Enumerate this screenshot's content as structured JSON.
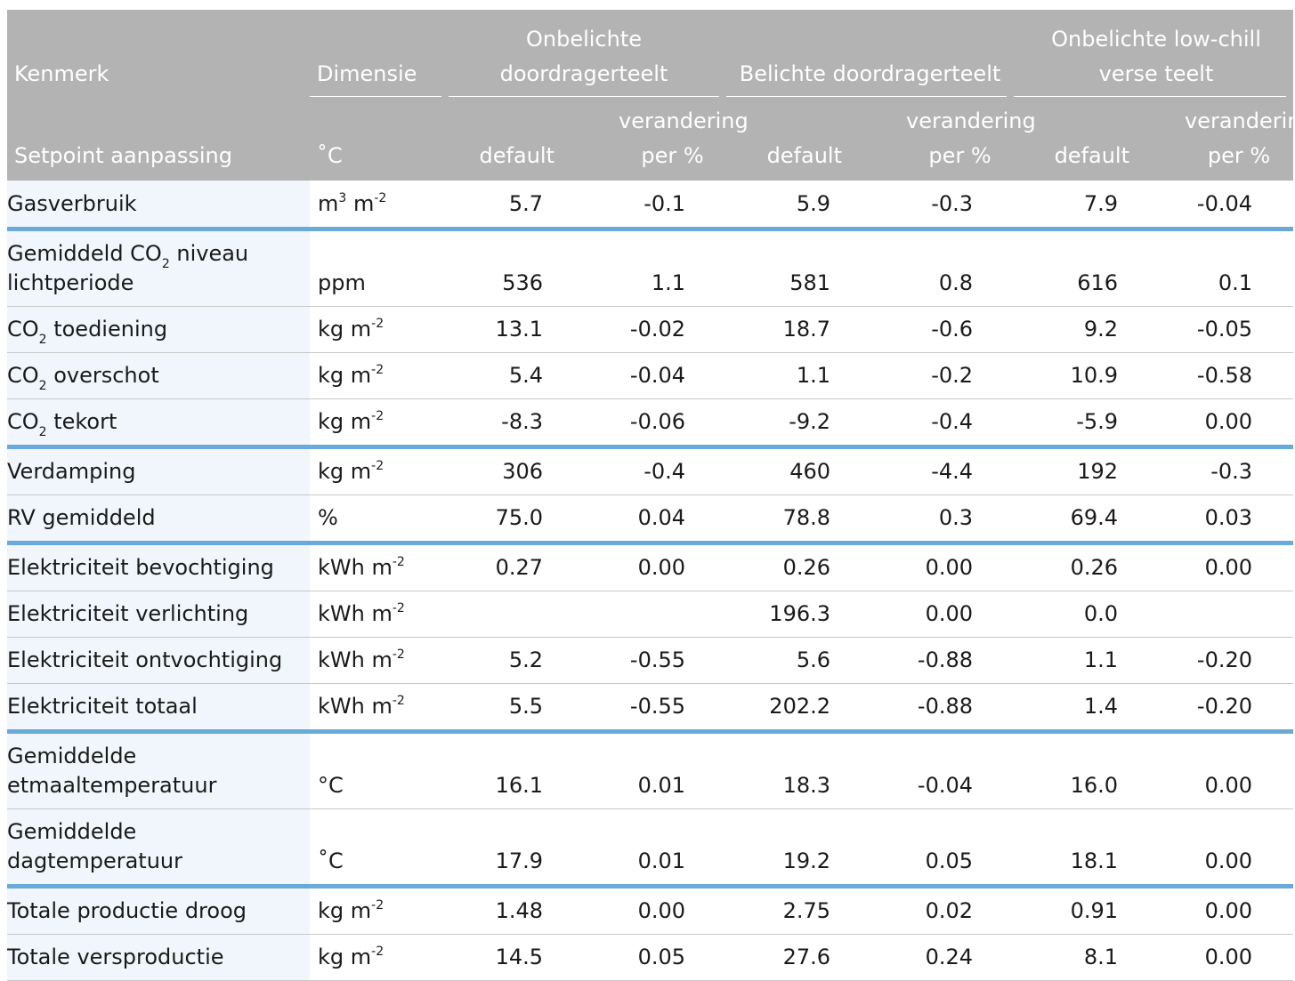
{
  "header": {
    "kenmerk": "Kenmerk",
    "dimensie": "Dimensie",
    "group1": "Onbelichte doordragerteelt",
    "group2": "Belichte doordragerteelt",
    "group3": "Onbelichte low-chill verse teelt",
    "setpoint": "Setpoint aanpassing",
    "setpoint_unit": "˚C",
    "default_label": "default",
    "change_label": "verandering per %"
  },
  "rows": [
    {
      "label": "Gasverbruik",
      "unit": "m³ m⁻²",
      "values": [
        "5.7",
        "-0.1",
        "5.9",
        "-0.3",
        "7.9",
        "-0.04"
      ]
    },
    {
      "label": "Gemiddeld CO₂ niveau lichtperiode",
      "unit": "ppm",
      "values": [
        "536",
        "1.1",
        "581",
        "0.8",
        "616",
        "0.1"
      ]
    },
    {
      "label": "CO₂ toediening",
      "unit": "kg m⁻²",
      "values": [
        "13.1",
        "-0.02",
        "18.7",
        "-0.6",
        "9.2",
        "-0.05"
      ]
    },
    {
      "label": "CO₂ overschot",
      "unit": "kg m⁻²",
      "values": [
        "5.4",
        "-0.04",
        "1.1",
        "-0.2",
        "10.9",
        "-0.58"
      ]
    },
    {
      "label": "CO₂ tekort",
      "unit": "kg m⁻²",
      "values": [
        "-8.3",
        "-0.06",
        "-9.2",
        "-0.4",
        "-5.9",
        "0.00"
      ]
    },
    {
      "label": "Verdamping",
      "unit": "kg m⁻²",
      "values": [
        "306",
        "-0.4",
        "460",
        "-4.4",
        "192",
        "-0.3"
      ]
    },
    {
      "label": "RV gemiddeld",
      "unit": "%",
      "values": [
        "75.0",
        "0.04",
        "78.8",
        "0.3",
        "69.4",
        "0.03"
      ]
    },
    {
      "label": "Elektriciteit bevochtiging",
      "unit": "kWh m⁻²",
      "values": [
        "0.27",
        "0.00",
        "0.26",
        "0.00",
        "0.26",
        "0.00"
      ]
    },
    {
      "label": "Elektriciteit verlichting",
      "unit": "kWh m⁻²",
      "values": [
        "",
        "",
        "196.3",
        "0.00",
        "0.0",
        ""
      ]
    },
    {
      "label": "Elektriciteit ontvochtiging",
      "unit": "kWh m⁻²",
      "values": [
        "5.2",
        "-0.55",
        "5.6",
        "-0.88",
        "1.1",
        "-0.20"
      ]
    },
    {
      "label": "Elektriciteit totaal",
      "unit": "kWh m⁻²",
      "values": [
        "5.5",
        "-0.55",
        "202.2",
        "-0.88",
        "1.4",
        "-0.20"
      ]
    },
    {
      "label": "Gemiddelde etmaaltemperatuur",
      "unit": "°C",
      "values": [
        "16.1",
        "0.01",
        "18.3",
        "-0.04",
        "16.0",
        "0.00"
      ]
    },
    {
      "label": "Gemiddelde dagtemperatuur",
      "unit": "˚C",
      "values": [
        "17.9",
        "0.01",
        "19.2",
        "0.05",
        "18.1",
        "0.00"
      ]
    },
    {
      "label": "Totale productie droog",
      "unit": "kg m⁻²",
      "values": [
        "1.48",
        "0.00",
        "2.75",
        "0.02",
        "0.91",
        "0.00"
      ]
    },
    {
      "label": "Totale versproductie",
      "unit": "kg m⁻²",
      "values": [
        "14.5",
        "0.05",
        "27.6",
        "0.24",
        "8.1",
        "0.00"
      ]
    }
  ]
}
